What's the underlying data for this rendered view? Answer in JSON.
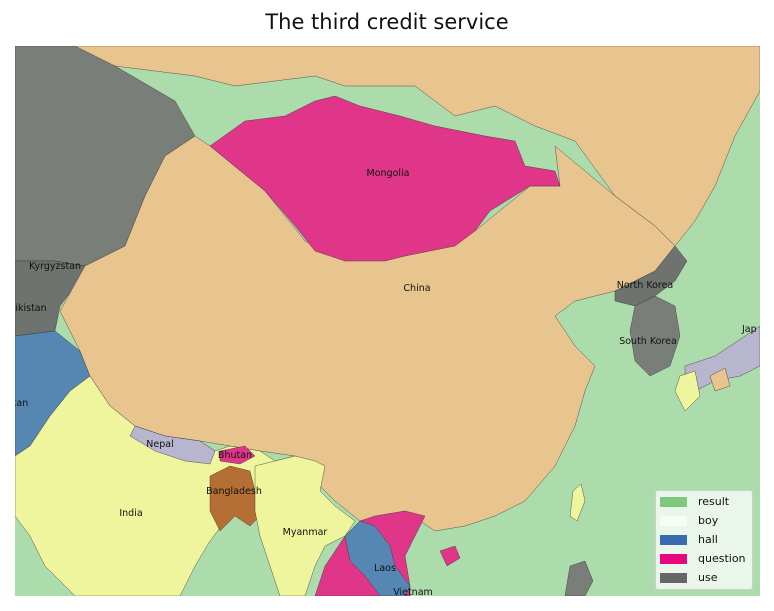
{
  "title": "The third credit service",
  "colors": {
    "ocean": "#addcac",
    "china": "#e8c48f",
    "mongolia": "#e03689",
    "dark": "#797f78",
    "india": "#eef59d",
    "nepal": "#b8b5ce",
    "bangladesh": "#b56f34",
    "blue": "#5587b2",
    "taiwan": "#eef59d"
  },
  "country_labels": {
    "china": "China",
    "mongolia": "Mongolia",
    "north_korea": "North Korea",
    "south_korea": "South Korea",
    "japan": "Jap",
    "kyrgyzstan": "Kyrgyzstan",
    "tajikistan": "ikistan",
    "pakistan": "stan",
    "nepal": "Nepal",
    "bhutan": "Bhutan",
    "bangladesh": "Bangladesh",
    "india": "India",
    "myanmar": "Myanmar",
    "laos": "Laos",
    "vietnam": "Vietnam"
  },
  "legend": [
    {
      "label": "result",
      "color": "#7fc97f"
    },
    {
      "label": "boy",
      "color": "#f7fcf5"
    },
    {
      "label": "hall",
      "color": "#386cb0"
    },
    {
      "label": "question",
      "color": "#e7077f"
    },
    {
      "label": "use",
      "color": "#666666"
    }
  ]
}
